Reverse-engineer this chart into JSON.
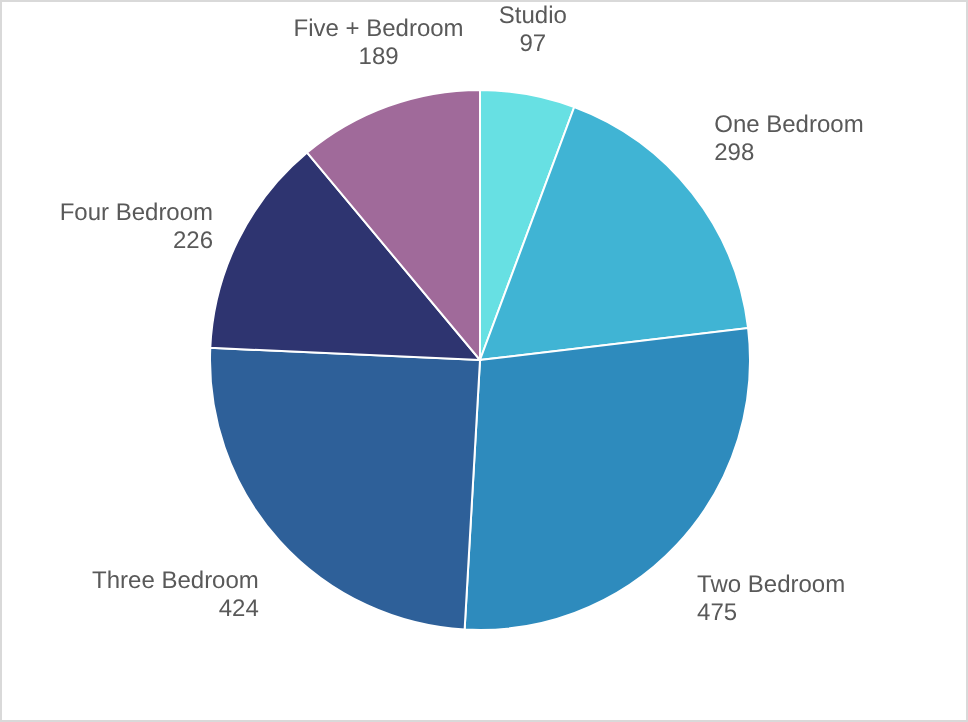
{
  "chart_data": {
    "type": "pie",
    "categories": [
      "Studio",
      "One Bedroom",
      "Two Bedroom",
      "Three Bedroom",
      "Four Bedroom",
      "Five + Bedroom"
    ],
    "values": [
      97,
      298,
      475,
      424,
      226,
      189
    ],
    "colors": [
      "#67e0e3",
      "#40b4d4",
      "#2e8bbd",
      "#2e6099",
      "#2e3470",
      "#a06a9a"
    ],
    "data_labels": true
  }
}
